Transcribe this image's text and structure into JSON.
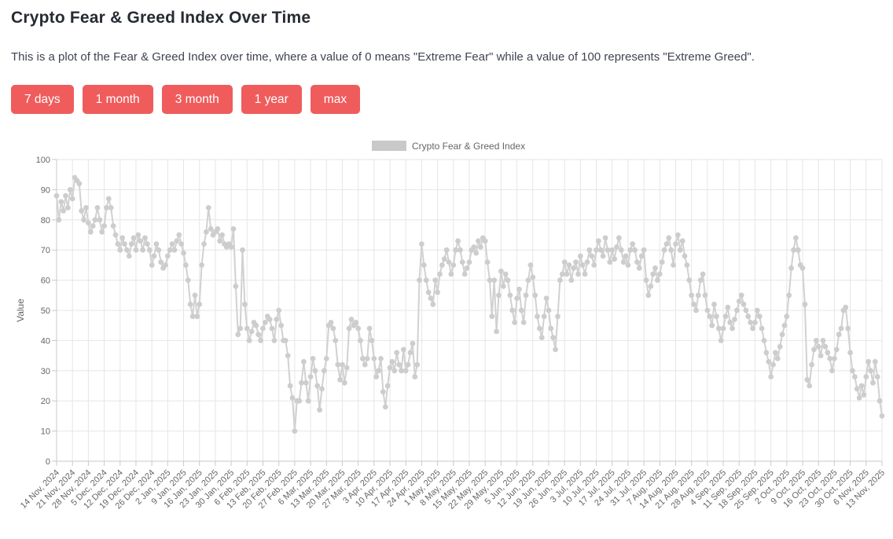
{
  "page": {
    "title": "Crypto Fear & Greed Index Over Time",
    "description": "This is a plot of the Fear & Greed Index over time, where a value of 0 means \"Extreme Fear\" while a value of 100 represents \"Extreme Greed\"."
  },
  "range_buttons": [
    "7 days",
    "1 month",
    "3 month",
    "1 year",
    "max"
  ],
  "colors": {
    "button": "#f05c5c",
    "series_line": "#d1d1d1",
    "series_marker": "#cdcdcd",
    "legend_swatch": "#c9c9c9",
    "grid": "#e6e6e6",
    "axis": "#c9c9c9",
    "tick_label": "#666666"
  },
  "chart_data": {
    "type": "line",
    "title": "",
    "legend": "Crypto Fear & Greed Index",
    "legend_position": "top",
    "grid": true,
    "xlabel": "",
    "ylabel": "Value",
    "ylim": [
      0,
      100
    ],
    "y_tick_step": 10,
    "x_start": "14 Nov, 2024",
    "x_end": "13 Nov, 2025",
    "x_tick_interval_days": 7,
    "x_tick_labels": [
      "14 Nov, 2024",
      "21 Nov, 2024",
      "28 Nov, 2024",
      "5 Dec, 2024",
      "12 Dec, 2024",
      "19 Dec, 2024",
      "26 Dec, 2024",
      "2 Jan, 2025",
      "9 Jan, 2025",
      "16 Jan, 2025",
      "23 Jan, 2025",
      "30 Jan, 2025",
      "6 Feb, 2025",
      "13 Feb, 2025",
      "20 Feb, 2025",
      "27 Feb, 2025",
      "6 Mar, 2025",
      "13 Mar, 2025",
      "20 Mar, 2025",
      "27 Mar, 2025",
      "3 Apr, 2025",
      "10 Apr, 2025",
      "17 Apr, 2025",
      "24 Apr, 2025",
      "1 May, 2025",
      "8 May, 2025",
      "15 May, 2025",
      "22 May, 2025",
      "29 May, 2025",
      "5 Jun, 2025",
      "12 Jun, 2025",
      "19 Jun, 2025",
      "26 Jun, 2025",
      "3 Jul, 2025",
      "10 Jul, 2025",
      "17 Jul, 2025",
      "24 Jul, 2025",
      "31 Jul, 2025",
      "7 Aug, 2025",
      "14 Aug, 2025",
      "21 Aug, 2025",
      "28 Aug, 2025",
      "4 Sep, 2025",
      "11 Sep, 2025",
      "18 Sep, 2025",
      "25 Sep, 2025",
      "2 Oct, 2025",
      "9 Oct, 2025",
      "16 Oct, 2025",
      "23 Oct, 2025",
      "30 Oct, 2025",
      "6 Nov, 2025",
      "13 Nov, 2025"
    ],
    "series": [
      {
        "name": "Crypto Fear & Greed Index",
        "color": "#d1d1d1",
        "values": [
          88,
          80,
          86,
          83,
          88,
          84,
          90,
          87,
          94,
          93,
          92,
          83,
          80,
          84,
          79,
          76,
          78,
          80,
          84,
          80,
          76,
          78,
          84,
          87,
          84,
          78,
          75,
          72,
          70,
          74,
          72,
          70,
          68,
          72,
          74,
          70,
          75,
          73,
          70,
          74,
          72,
          70,
          65,
          68,
          72,
          70,
          66,
          64,
          65,
          68,
          70,
          72,
          70,
          73,
          75,
          72,
          69,
          65,
          60,
          52,
          48,
          55,
          48,
          52,
          65,
          72,
          76,
          84,
          77,
          75,
          76,
          77,
          73,
          75,
          72,
          71,
          72,
          71,
          77,
          58,
          42,
          44,
          70,
          52,
          44,
          40,
          43,
          46,
          45,
          42,
          40,
          44,
          46,
          48,
          47,
          44,
          40,
          47,
          50,
          45,
          40,
          40,
          35,
          25,
          21,
          10,
          20,
          20,
          26,
          33,
          26,
          20,
          28,
          34,
          30,
          25,
          17,
          24,
          30,
          34,
          45,
          46,
          44,
          40,
          32,
          27,
          32,
          26,
          31,
          44,
          47,
          45,
          46,
          44,
          40,
          34,
          32,
          34,
          44,
          40,
          34,
          28,
          30,
          34,
          23,
          18,
          25,
          31,
          33,
          30,
          36,
          32,
          30,
          37,
          30,
          32,
          36,
          39,
          28,
          32,
          60,
          72,
          65,
          60,
          56,
          54,
          52,
          60,
          56,
          62,
          65,
          67,
          70,
          66,
          62,
          65,
          70,
          73,
          70,
          66,
          62,
          64,
          66,
          70,
          71,
          69,
          73,
          71,
          74,
          73,
          66,
          60,
          48,
          60,
          43,
          55,
          63,
          58,
          62,
          60,
          55,
          50,
          46,
          54,
          57,
          50,
          46,
          55,
          60,
          65,
          61,
          55,
          48,
          44,
          41,
          48,
          54,
          50,
          44,
          41,
          37,
          48,
          60,
          62,
          66,
          62,
          65,
          60,
          64,
          66,
          62,
          68,
          65,
          62,
          66,
          70,
          68,
          65,
          70,
          73,
          70,
          68,
          74,
          70,
          66,
          70,
          67,
          71,
          74,
          70,
          66,
          68,
          65,
          70,
          72,
          70,
          66,
          64,
          68,
          70,
          60,
          55,
          58,
          62,
          64,
          60,
          62,
          66,
          70,
          72,
          74,
          70,
          65,
          72,
          75,
          70,
          73,
          68,
          65,
          60,
          55,
          52,
          50,
          55,
          60,
          62,
          55,
          50,
          48,
          45,
          52,
          48,
          44,
          40,
          44,
          48,
          51,
          46,
          44,
          47,
          50,
          53,
          55,
          52,
          50,
          48,
          46,
          44,
          46,
          50,
          48,
          44,
          40,
          36,
          33,
          28,
          32,
          36,
          34,
          38,
          42,
          45,
          48,
          55,
          64,
          70,
          74,
          70,
          65,
          64,
          52,
          27,
          25,
          32,
          37,
          40,
          38,
          35,
          40,
          38,
          36,
          34,
          30,
          34,
          37,
          42,
          44,
          50,
          51,
          44,
          36,
          30,
          28,
          24,
          21,
          25,
          22,
          28,
          33,
          30,
          26,
          33,
          28,
          20,
          15
        ]
      }
    ]
  }
}
